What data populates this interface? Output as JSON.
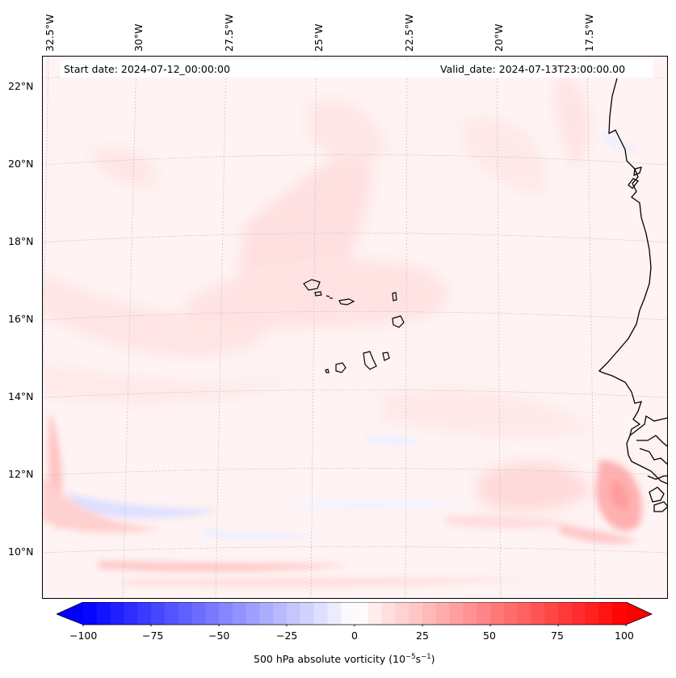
{
  "map": {
    "start_date": "Start date: 2024-07-12_00:00:00",
    "valid_date": "Valid_date: 2024-07-13T23:00:00.00",
    "lon_labels": [
      "32.5°W",
      "30°W",
      "27.5°W",
      "25°W",
      "22.5°W",
      "20°W",
      "17.5°W"
    ],
    "lat_labels": [
      "22°N",
      "20°N",
      "18°N",
      "16°N",
      "14°N",
      "12°N",
      "10°N"
    ],
    "field": "500 hPa absolute vorticity",
    "region": "Cabo Verde and West African coast"
  },
  "colorbar": {
    "label": "500 hPa absolute vorticity (10",
    "label_exp1": "−5",
    "label_mid": "s",
    "label_exp2": "−1",
    "label_end": ")",
    "ticks": [
      "−100",
      "−75",
      "−50",
      "−25",
      "0",
      "25",
      "50",
      "75",
      "100"
    ],
    "range": [
      -100,
      100
    ],
    "colormap": "bwr",
    "neg_color": "#0000ff",
    "zero_color": "#ffffff",
    "pos_color": "#ff0000"
  }
}
